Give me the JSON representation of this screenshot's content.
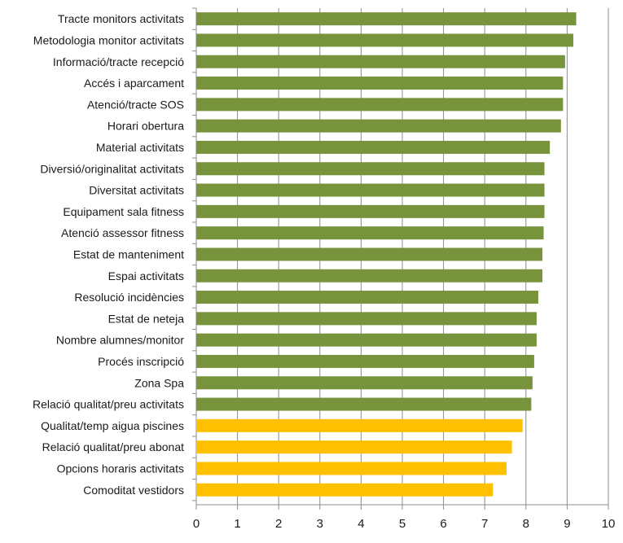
{
  "chart_data": {
    "type": "bar",
    "orientation": "horizontal",
    "categories": [
      "Tracte monitors activitats",
      "Metodologia monitor activitats",
      "Informació/tracte recepció",
      "Accés i aparcament",
      "Atenció/tracte SOS",
      "Horari obertura",
      "Material activitats",
      "Diversió/originalitat activitats",
      "Diversitat activitats",
      "Equipament sala fitness",
      "Atenció assessor fitness",
      "Estat de manteniment",
      "Espai activitats",
      "Resolució incidències",
      "Estat de neteja",
      "Nombre alumnes/monitor",
      "Procés inscripció",
      "Zona Spa",
      "Relació qualitat/preu activitats",
      "Qualitat/temp aigua piscines",
      "Relació qualitat/preu abonat",
      "Opcions horaris activitats",
      "Comoditat vestidors"
    ],
    "values": [
      9.22,
      9.15,
      8.95,
      8.9,
      8.9,
      8.85,
      8.58,
      8.45,
      8.45,
      8.45,
      8.43,
      8.4,
      8.4,
      8.3,
      8.26,
      8.26,
      8.2,
      8.16,
      8.13,
      7.92,
      7.66,
      7.53,
      7.2
    ],
    "bar_colors": [
      "#77933c",
      "#77933c",
      "#77933c",
      "#77933c",
      "#77933c",
      "#77933c",
      "#77933c",
      "#77933c",
      "#77933c",
      "#77933c",
      "#77933c",
      "#77933c",
      "#77933c",
      "#77933c",
      "#77933c",
      "#77933c",
      "#77933c",
      "#77933c",
      "#77933c",
      "#ffc000",
      "#ffc000",
      "#ffc000",
      "#ffc000"
    ],
    "x_ticks": [
      0,
      1,
      2,
      3,
      4,
      5,
      6,
      7,
      8,
      9,
      10
    ],
    "xlim": [
      0,
      10
    ],
    "title": "",
    "xlabel": "",
    "ylabel": "",
    "grid": "vertical",
    "legend": "none"
  }
}
